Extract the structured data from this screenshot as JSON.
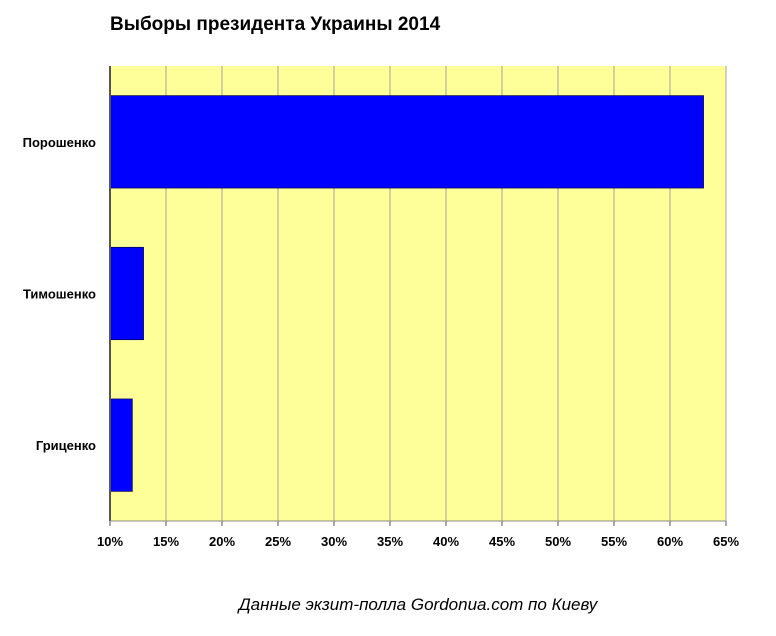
{
  "chart_data": {
    "type": "bar",
    "orientation": "horizontal",
    "title": "Выборы президента Украины 2014",
    "caption": "Данные экзит-полла Gordonua.com по Киеву",
    "categories": [
      "Порошенко",
      "Тимошенко",
      "Гриценко"
    ],
    "values": [
      63,
      13,
      12
    ],
    "xlim": [
      10,
      65
    ],
    "xticks": [
      10,
      15,
      20,
      25,
      30,
      35,
      40,
      45,
      50,
      55,
      60,
      65
    ],
    "tick_suffix": "%",
    "grid": "vertical",
    "legend": "none",
    "colors": {
      "bar": "#0000ff",
      "plot_bg": "#ffff99",
      "grid": "#a0a0a0"
    }
  }
}
